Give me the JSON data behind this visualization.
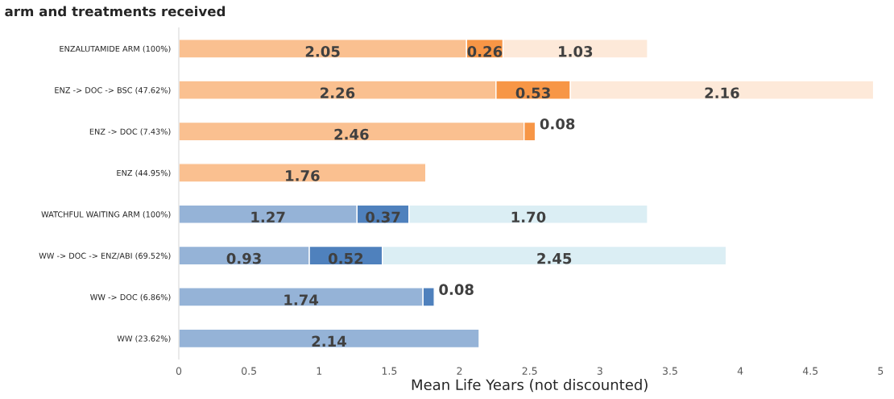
{
  "chart_data": {
    "type": "bar",
    "orientation": "horizontal",
    "stacked": true,
    "title": "arm and treatments received",
    "xlabel": "Mean Life Years (not discounted)",
    "categories": [
      "ENZALUTAMIDE ARM (100%)",
      "ENZ -> DOC -> BSC (47.62%)",
      "ENZ -> DOC (7.43%)",
      "ENZ (44.95%)",
      "WATCHFUL WAITING ARM (100%)",
      "WW -> DOC -> ENZ/ABI (69.52%)",
      "WW -> DOC (6.86%)",
      "WW (23.62%)"
    ],
    "series": [
      {
        "colors": [
          "#fac090",
          "#fac090",
          "#fac090",
          "#fac090",
          "#95b3d7",
          "#95b3d7",
          "#95b3d7",
          "#95b3d7"
        ],
        "values": [
          2.05,
          2.26,
          2.46,
          1.76,
          1.27,
          0.93,
          1.74,
          2.14
        ],
        "value_labels": [
          "2.05",
          "2.26",
          "2.46",
          "1.76",
          "1.27",
          "0.93",
          "1.74",
          "2.14"
        ]
      },
      {
        "colors": [
          "#f79646",
          "#f79646",
          "#f79646",
          null,
          "#4f81bd",
          "#4f81bd",
          "#4f81bd",
          null
        ],
        "values": [
          0.26,
          0.53,
          0.08,
          null,
          0.37,
          0.52,
          0.08,
          null
        ],
        "value_labels": [
          "0.26",
          "0.53",
          "0.08",
          null,
          "0.37",
          "0.52",
          "0.08",
          null
        ]
      },
      {
        "colors": [
          "#fde9d9",
          "#fde9d9",
          null,
          null,
          "#dbeef4",
          "#dbeef4",
          null,
          null
        ],
        "values": [
          1.03,
          2.16,
          null,
          null,
          1.7,
          2.45,
          null,
          null
        ],
        "value_labels": [
          "1.03",
          "2.16",
          null,
          null,
          "1.70",
          "2.45",
          null,
          null
        ]
      }
    ],
    "xlim": [
      0,
      5
    ],
    "xticks": [
      0,
      0.5,
      1,
      1.5,
      2,
      2.5,
      3,
      3.5,
      4,
      4.5,
      5
    ],
    "grid": false,
    "legend": false
  }
}
